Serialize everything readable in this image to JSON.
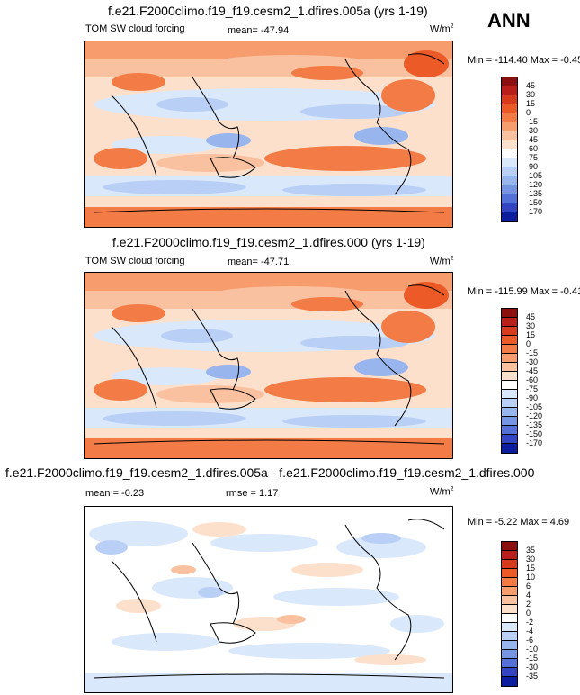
{
  "season": "ANN",
  "panels": [
    {
      "title": "f.e21.F2000climo.f19_f19.cesm2_1.dfires.005a (yrs 1-19)",
      "variable": "TOM SW cloud forcing",
      "stat1": "mean= -47.94",
      "stat2": "",
      "units": "W/m",
      "units_sup": "2",
      "minmax": "Min = -114.40 Max =  -0.45"
    },
    {
      "title": "f.e21.F2000climo.f19_f19.cesm2_1.dfires.000 (yrs 1-19)",
      "variable": "TOM SW cloud forcing",
      "stat1": "mean= -47.71",
      "stat2": "",
      "units": "W/m",
      "units_sup": "2",
      "minmax": "Min = -115.99 Max =  -0.41"
    },
    {
      "title": "f.e21.F2000climo.f19_f19.cesm2_1.dfires.005a - f.e21.F2000climo.f19_f19.cesm2_1.dfires.000",
      "variable": "",
      "stat1": "mean =  -0.23",
      "stat2": "rmse =   1.17",
      "units": "W/m",
      "units_sup": "2",
      "minmax": "Min =  -5.22 Max =   4.69"
    }
  ],
  "colorbars": {
    "field": {
      "labels": [
        "45",
        "30",
        "15",
        "0",
        "-15",
        "-30",
        "-45",
        "-60",
        "-75",
        "-90",
        "-105",
        "-120",
        "-135",
        "-150",
        "-170"
      ],
      "colors": [
        "#8b0f0f",
        "#b81f1a",
        "#d83a1e",
        "#ec5a28",
        "#f37b45",
        "#f79c6c",
        "#fac1a0",
        "#fde0cc",
        "#ffffff",
        "#dae8fb",
        "#b9cff5",
        "#98b5ee",
        "#7795e3",
        "#5570d6",
        "#3445c4",
        "#0c1d9e"
      ]
    },
    "diff": {
      "labels": [
        "35",
        "30",
        "15",
        "10",
        "6",
        "4",
        "2",
        "0",
        "-2",
        "-4",
        "-6",
        "-10",
        "-15",
        "-30",
        "-35"
      ],
      "colors": [
        "#8b0f0f",
        "#b81f1a",
        "#d83a1e",
        "#ec5a28",
        "#f37b45",
        "#f79c6c",
        "#fac1a0",
        "#fde0cc",
        "#ffffff",
        "#dae8fb",
        "#b9cff5",
        "#98b5ee",
        "#7795e3",
        "#5570d6",
        "#3445c4",
        "#0c1d9e"
      ]
    }
  },
  "chart_data": [
    {
      "type": "heatmap",
      "title": "f.e21.F2000climo.f19_f19.cesm2_1.dfires.005a (yrs 1-19)",
      "variable": "TOM SW cloud forcing",
      "units": "W/m2",
      "mean": -47.94,
      "min": -114.4,
      "max": -0.45,
      "levels": [
        45,
        30,
        15,
        0,
        -15,
        -30,
        -45,
        -60,
        -75,
        -90,
        -105,
        -120,
        -135,
        -150,
        -170
      ],
      "season": "ANN"
    },
    {
      "type": "heatmap",
      "title": "f.e21.F2000climo.f19_f19.cesm2_1.dfires.000 (yrs 1-19)",
      "variable": "TOM SW cloud forcing",
      "units": "W/m2",
      "mean": -47.71,
      "min": -115.99,
      "max": -0.41,
      "levels": [
        45,
        30,
        15,
        0,
        -15,
        -30,
        -45,
        -60,
        -75,
        -90,
        -105,
        -120,
        -135,
        -150,
        -170
      ]
    },
    {
      "type": "heatmap",
      "title": "f.e21.F2000climo.f19_f19.cesm2_1.dfires.005a - f.e21.F2000climo.f19_f19.cesm2_1.dfires.000",
      "units": "W/m2",
      "mean": -0.23,
      "rmse": 1.17,
      "min": -5.22,
      "max": 4.69,
      "levels": [
        35,
        30,
        15,
        10,
        6,
        4,
        2,
        0,
        -2,
        -4,
        -6,
        -10,
        -15,
        -30,
        -35
      ]
    }
  ]
}
